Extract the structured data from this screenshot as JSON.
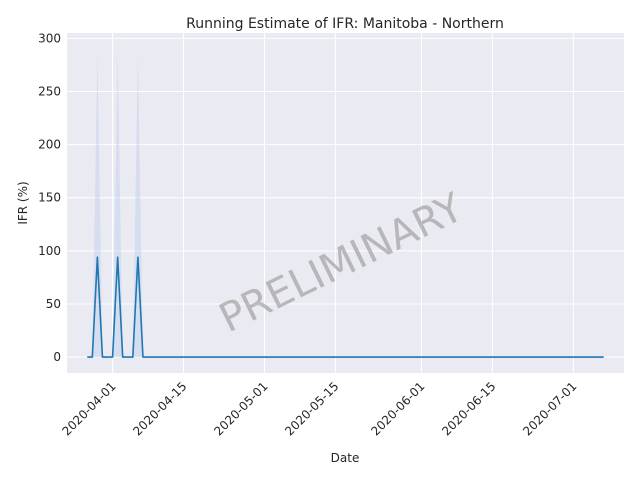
{
  "chart_data": {
    "type": "line",
    "title": "Running Estimate of IFR: Manitoba - Northern",
    "xlabel": "Date",
    "ylabel": "IFR (%)",
    "watermark": "PRELIMINARY",
    "ylim": [
      -15,
      305
    ],
    "xlim": [
      "2020-03-23",
      "2020-07-11"
    ],
    "x_ticks": [
      "2020-04-01",
      "2020-04-15",
      "2020-05-01",
      "2020-05-15",
      "2020-06-01",
      "2020-06-15",
      "2020-07-01"
    ],
    "y_ticks": [
      0,
      50,
      100,
      150,
      200,
      250,
      300
    ],
    "grid": true,
    "colors": {
      "line": "#1f77b4",
      "band": "#aec7e8",
      "background": "#eaeaf2",
      "grid": "#ffffff"
    },
    "series": [
      {
        "x": [
          "2020-03-27",
          "2020-03-28",
          "2020-03-29",
          "2020-03-30",
          "2020-03-31",
          "2020-04-01",
          "2020-04-02",
          "2020-04-03",
          "2020-04-04",
          "2020-04-05",
          "2020-04-06",
          "2020-04-07",
          "2020-04-08",
          "2020-04-09",
          "2020-07-07"
        ],
        "values": [
          0,
          0,
          94,
          0,
          0,
          0,
          94,
          0,
          0,
          0,
          94,
          0,
          0,
          0,
          0
        ],
        "upper": [
          0,
          0,
          285,
          0,
          0,
          0,
          285,
          0,
          0,
          0,
          285,
          0,
          0,
          0,
          0
        ],
        "lower": [
          0,
          0,
          0,
          0,
          0,
          0,
          0,
          0,
          0,
          0,
          0,
          0,
          0,
          0,
          0
        ]
      }
    ]
  }
}
